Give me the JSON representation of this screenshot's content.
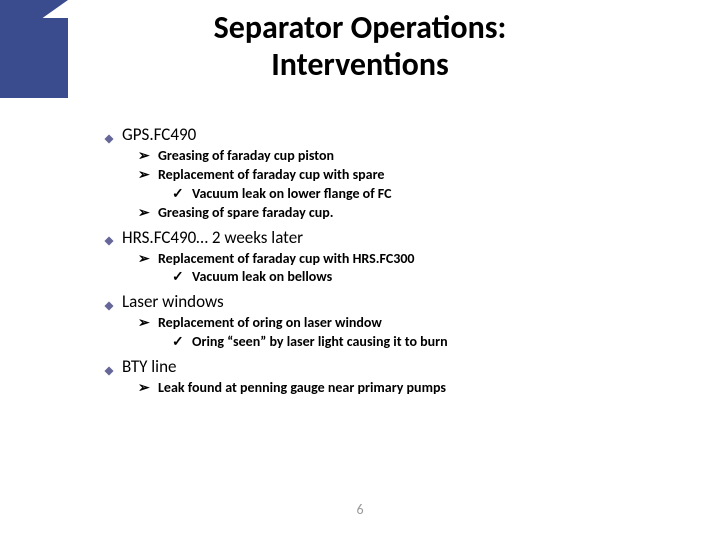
{
  "title_line1": "Separator Operations:",
  "title_line2": "Interventions",
  "theme": {
    "accent": "#3a4c8d",
    "text": "#000000",
    "page_num_color": "#9a9a9a",
    "bg": "#ffffff"
  },
  "bullets": {
    "diamond_fill": "#666699",
    "diamond_stroke": "#ffffff",
    "arrow_color": "#000000",
    "check_color": "#000000"
  },
  "sections": [
    {
      "label": "GPS.FC490",
      "items": [
        {
          "text": "Greasing of faraday cup piston"
        },
        {
          "text": "Replacement of faraday cup with spare",
          "sub": [
            {
              "text": "Vacuum leak on lower flange of FC"
            }
          ]
        },
        {
          "text": "Greasing of spare faraday cup."
        }
      ]
    },
    {
      "label": "HRS.FC490… 2 weeks later",
      "items": [
        {
          "text": "Replacement of faraday cup with HRS.FC300",
          "sub": [
            {
              "text": "Vacuum leak on bellows"
            }
          ]
        }
      ]
    },
    {
      "label": "Laser windows",
      "items": [
        {
          "text": "Replacement of oring on laser window",
          "sub": [
            {
              "text": "Oring “seen” by laser light causing it to burn"
            }
          ]
        }
      ]
    },
    {
      "label": "BTY line",
      "items": [
        {
          "text": "Leak found at penning gauge near primary pumps"
        }
      ]
    }
  ],
  "page_number": "6"
}
